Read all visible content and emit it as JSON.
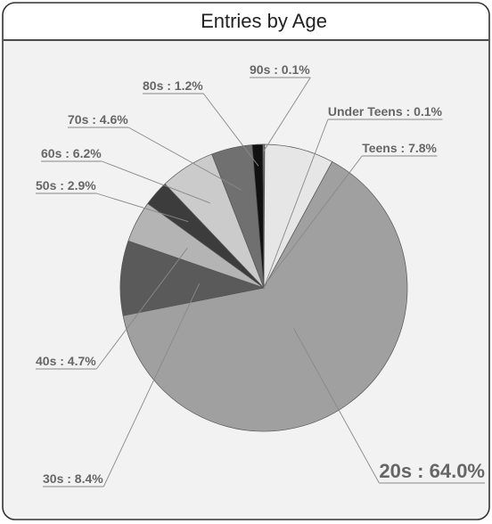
{
  "chart_data": {
    "type": "pie",
    "title": "Entries by Age",
    "slices": [
      {
        "label": "Under Teens",
        "value": 0.1,
        "text": "Under Teens : 0.1%",
        "color": "#9e9e9e"
      },
      {
        "label": "Teens",
        "value": 7.8,
        "text": "Teens : 7.8%",
        "color": "#e6e6e6"
      },
      {
        "label": "20s",
        "value": 64.0,
        "text": "20s : 64.0%",
        "color": "#a0a0a0"
      },
      {
        "label": "30s",
        "value": 8.4,
        "text": "30s : 8.4%",
        "color": "#5a5a5a"
      },
      {
        "label": "40s",
        "value": 4.7,
        "text": "40s : 4.7%",
        "color": "#b4b4b4"
      },
      {
        "label": "50s",
        "value": 2.9,
        "text": "50s : 2.9%",
        "color": "#3c3c3c"
      },
      {
        "label": "60s",
        "value": 6.2,
        "text": "60s : 6.2%",
        "color": "#cbcbcb"
      },
      {
        "label": "70s",
        "value": 4.6,
        "text": "70s : 4.6%",
        "color": "#707070"
      },
      {
        "label": "80s",
        "value": 1.2,
        "text": "80s : 1.2%",
        "color": "#111111"
      },
      {
        "label": "90s",
        "value": 0.1,
        "text": "90s : 0.1%",
        "color": "#cfcfcf"
      }
    ],
    "colors": {
      "panel_background": "#f2f2f2",
      "border": "#333333",
      "label_text": "#666666",
      "slice_edge": "#555555"
    }
  }
}
